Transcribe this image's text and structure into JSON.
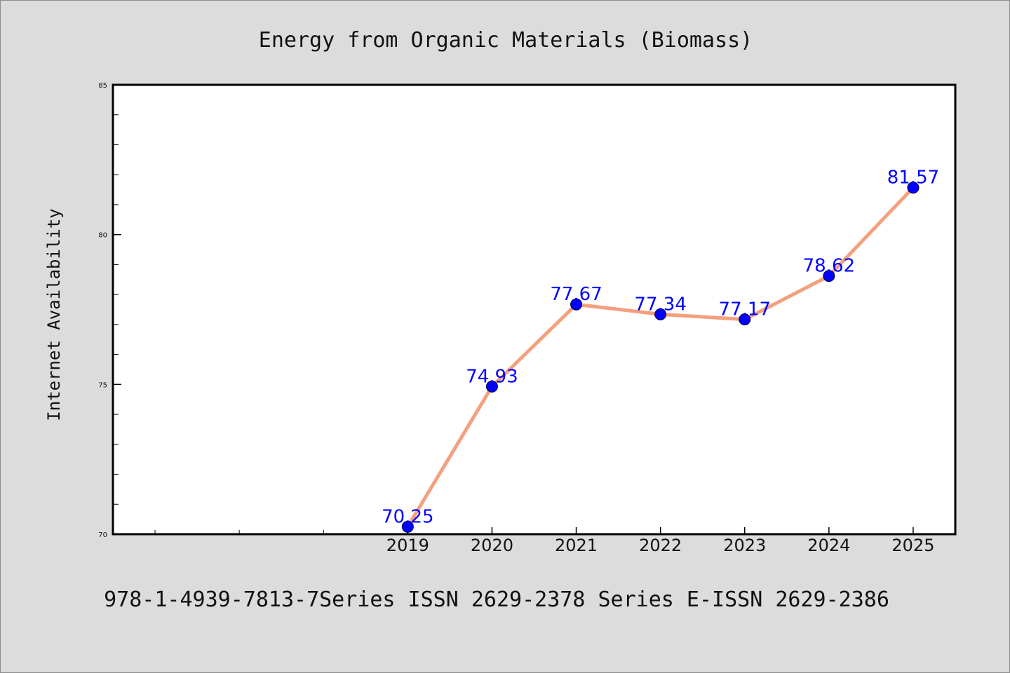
{
  "chart_data": {
    "type": "line",
    "title": "Energy from Organic Materials (Biomass)",
    "xlabel": "",
    "ylabel": "Internet Availability",
    "categories": [
      "2019",
      "2020",
      "2021",
      "2022",
      "2023",
      "2024",
      "2025"
    ],
    "x": [
      2019,
      2020,
      2021,
      2022,
      2023,
      2024,
      2025
    ],
    "series": [
      {
        "values": [
          70.25,
          74.93,
          77.67,
          77.34,
          77.17,
          78.62,
          81.57
        ]
      }
    ],
    "data_labels": [
      "70.25",
      "74.93",
      "77.67",
      "77.34",
      "77.17",
      "78.62",
      "81.57"
    ],
    "xlim": [
      2015.5,
      2025.5
    ],
    "ylim": [
      70,
      85
    ],
    "y_ticks": [
      70,
      75,
      80,
      85
    ],
    "y_tick_labels": [
      "70",
      "75",
      "80",
      "85"
    ],
    "y_minor_step": 1,
    "x_minor_ticks": [
      2016,
      2017,
      2018
    ],
    "grid": false,
    "legend": "none",
    "colors": {
      "line": "#f4a07e",
      "marker": "#0000ff",
      "label": "#0000ff",
      "background": "#dcdcdc",
      "plot_background": "#ffffff"
    }
  },
  "footer": "978-1-4939-7813-7Series ISSN 2629-2378 Series E-ISSN 2629-2386"
}
